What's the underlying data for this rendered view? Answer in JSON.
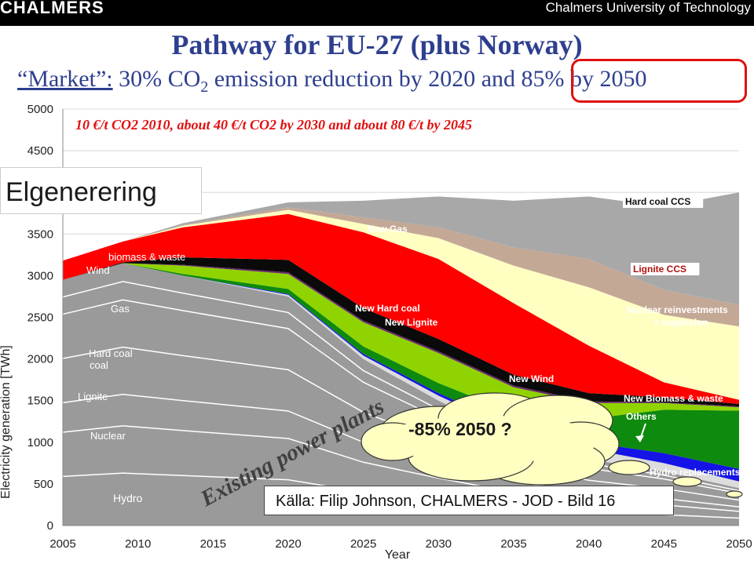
{
  "header": {
    "brand_left": "CHALMERS",
    "brand_right": "Chalmers University of Technology"
  },
  "slide": {
    "title": "Pathway for EU-27 (plus Norway)",
    "subtitle_prefix": "“Market”:",
    "subtitle_a": " 30% CO",
    "subtitle_sub": "2",
    "subtitle_b": " emission reduction by 2020 and 85% by 2050",
    "section_label": "Elgenerering",
    "bubble": "-85% 2050 ?",
    "source": "Källa: Filip Johnson, CHALMERS - JOD - Bild 16"
  },
  "colors": {
    "accent_blue": "#2e3f8f",
    "highlight_red": "#e01010"
  },
  "chart_data": {
    "type": "area",
    "title": "10 €/t CO2 2010, about 40 €/t CO2 by 2030 and about 80 €/t by 2045",
    "xlabel": "Year",
    "ylabel": "Electricity generation [TWh]",
    "xlim": [
      2005,
      2050
    ],
    "ylim": [
      0,
      5000
    ],
    "xticks": [
      2005,
      2010,
      2015,
      2020,
      2025,
      2030,
      2035,
      2040,
      2045,
      2050
    ],
    "xtick_labels": [
      "2005",
      "2010",
      "2015",
      "2020",
      "2025",
      "2030",
      "2035",
      "2040",
      "2045",
      "2050"
    ],
    "yticks": [
      0,
      500,
      1000,
      1500,
      2000,
      2500,
      3000,
      3500,
      4000,
      4500,
      5000
    ],
    "ytick_labels": [
      "0",
      "500",
      "1000",
      "1500",
      "2000",
      "2500",
      "3000",
      "3500",
      "4000",
      "4500",
      "5000"
    ],
    "x": [
      2005,
      2009,
      2013,
      2020,
      2025,
      2030,
      2035,
      2040,
      2045,
      2050
    ],
    "existing_labels": [
      "Hydro",
      "Nuclear",
      "Lignite",
      "Hard coal",
      "Gas",
      "Wind",
      "biomass & waste"
    ],
    "annotation": "Existing power plants",
    "series": [
      {
        "name": "Existing power plants",
        "color": "#9a9a9a",
        "values": [
          2950,
          3150,
          3000,
          2750,
          2000,
          1500,
          1050,
          800,
          650,
          450
        ]
      },
      {
        "name": "Others",
        "color": "#dcdcdc",
        "values": [
          0,
          0,
          0,
          20,
          40,
          60,
          90,
          120,
          100,
          80
        ]
      },
      {
        "name": "Hydro replacements",
        "color": "#1414e6",
        "values": [
          0,
          0,
          0,
          10,
          20,
          30,
          50,
          80,
          120,
          150
        ]
      },
      {
        "name": "New Biomass & waste",
        "color": "#0e8a0e",
        "values": [
          0,
          0,
          20,
          60,
          90,
          120,
          160,
          280,
          520,
          700
        ]
      },
      {
        "name": "New Wind",
        "color": "#8fd400",
        "values": [
          0,
          0,
          100,
          180,
          290,
          360,
          310,
          190,
          80,
          40
        ]
      },
      {
        "name": "New Lignite",
        "color": "#6b2a6b",
        "values": [
          0,
          0,
          10,
          20,
          20,
          20,
          20,
          20,
          10,
          10
        ]
      },
      {
        "name": "New Hard coal",
        "color": "#0a0a0a",
        "values": [
          0,
          10,
          90,
          150,
          150,
          150,
          130,
          100,
          60,
          30
        ]
      },
      {
        "name": "New Gas",
        "color": "#ff0000",
        "values": [
          230,
          250,
          360,
          550,
          910,
          960,
          860,
          570,
          180,
          50
        ]
      },
      {
        "name": "Nuclear reinvestments + expansion",
        "color": "#ffffc2",
        "values": [
          0,
          0,
          20,
          50,
          100,
          250,
          450,
          700,
          810,
          880
        ]
      },
      {
        "name": "Lignite CCS",
        "color": "#c4a896",
        "values": [
          0,
          0,
          10,
          30,
          80,
          130,
          220,
          340,
          300,
          260
        ]
      },
      {
        "name": "Hard coal CCS",
        "color": "#a8a8a8",
        "values": [
          0,
          0,
          20,
          60,
          200,
          370,
          560,
          750,
          1000,
          1350
        ]
      }
    ],
    "area_labels": [
      {
        "text": "Hard coal CCS"
      },
      {
        "text": "Lignite CCS"
      },
      {
        "text": "Nuclear  reinvestments"
      },
      {
        "text": "+ expansion"
      },
      {
        "text": "New Gas"
      },
      {
        "text": "New Hard  coal"
      },
      {
        "text": "New Lignite"
      },
      {
        "text": "New Wind"
      },
      {
        "text": "New Biomass & waste"
      },
      {
        "text": "Others"
      },
      {
        "text": "Hydro replacements"
      }
    ]
  }
}
